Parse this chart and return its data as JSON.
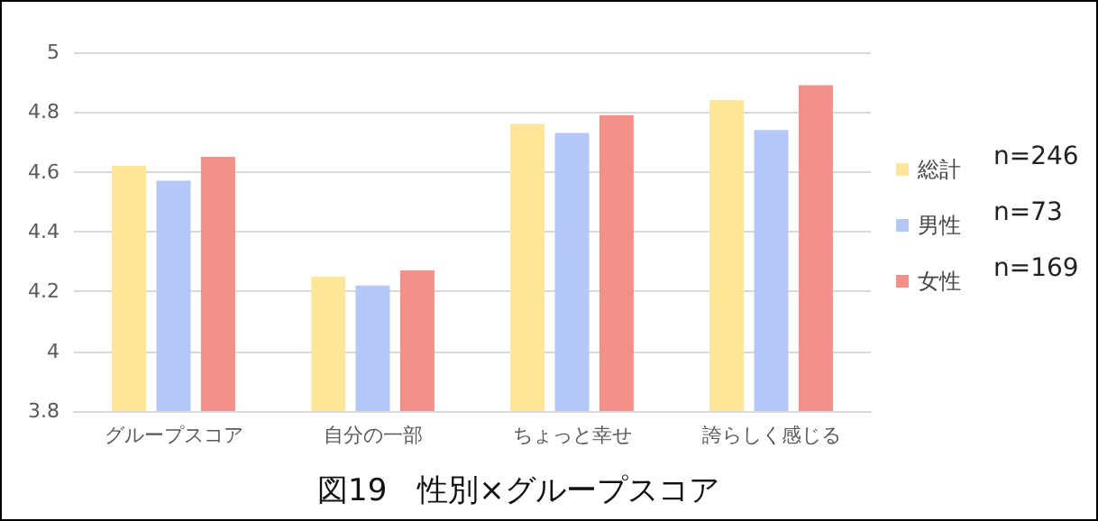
{
  "chart_data": {
    "type": "bar",
    "title": "図19　性別×グループスコア",
    "categories": [
      "グループスコア",
      "自分の一部",
      "ちょっと幸せ",
      "誇らしく感じる"
    ],
    "series": [
      {
        "name": "総計",
        "color": "#ffe699",
        "values": [
          4.62,
          4.25,
          4.76,
          4.84
        ]
      },
      {
        "name": "男性",
        "color": "#b4c7f7",
        "values": [
          4.57,
          4.22,
          4.73,
          4.74
        ]
      },
      {
        "name": "女性",
        "color": "#f4908a",
        "values": [
          4.65,
          4.27,
          4.79,
          4.89
        ]
      }
    ],
    "annotations": [
      "n=246",
      "n=73",
      "n=169"
    ],
    "ylim": [
      3.8,
      5
    ],
    "yticks": [
      3.8,
      4,
      4.2,
      4.4,
      4.6,
      4.8,
      5
    ],
    "grid": "y",
    "legend": "right"
  }
}
